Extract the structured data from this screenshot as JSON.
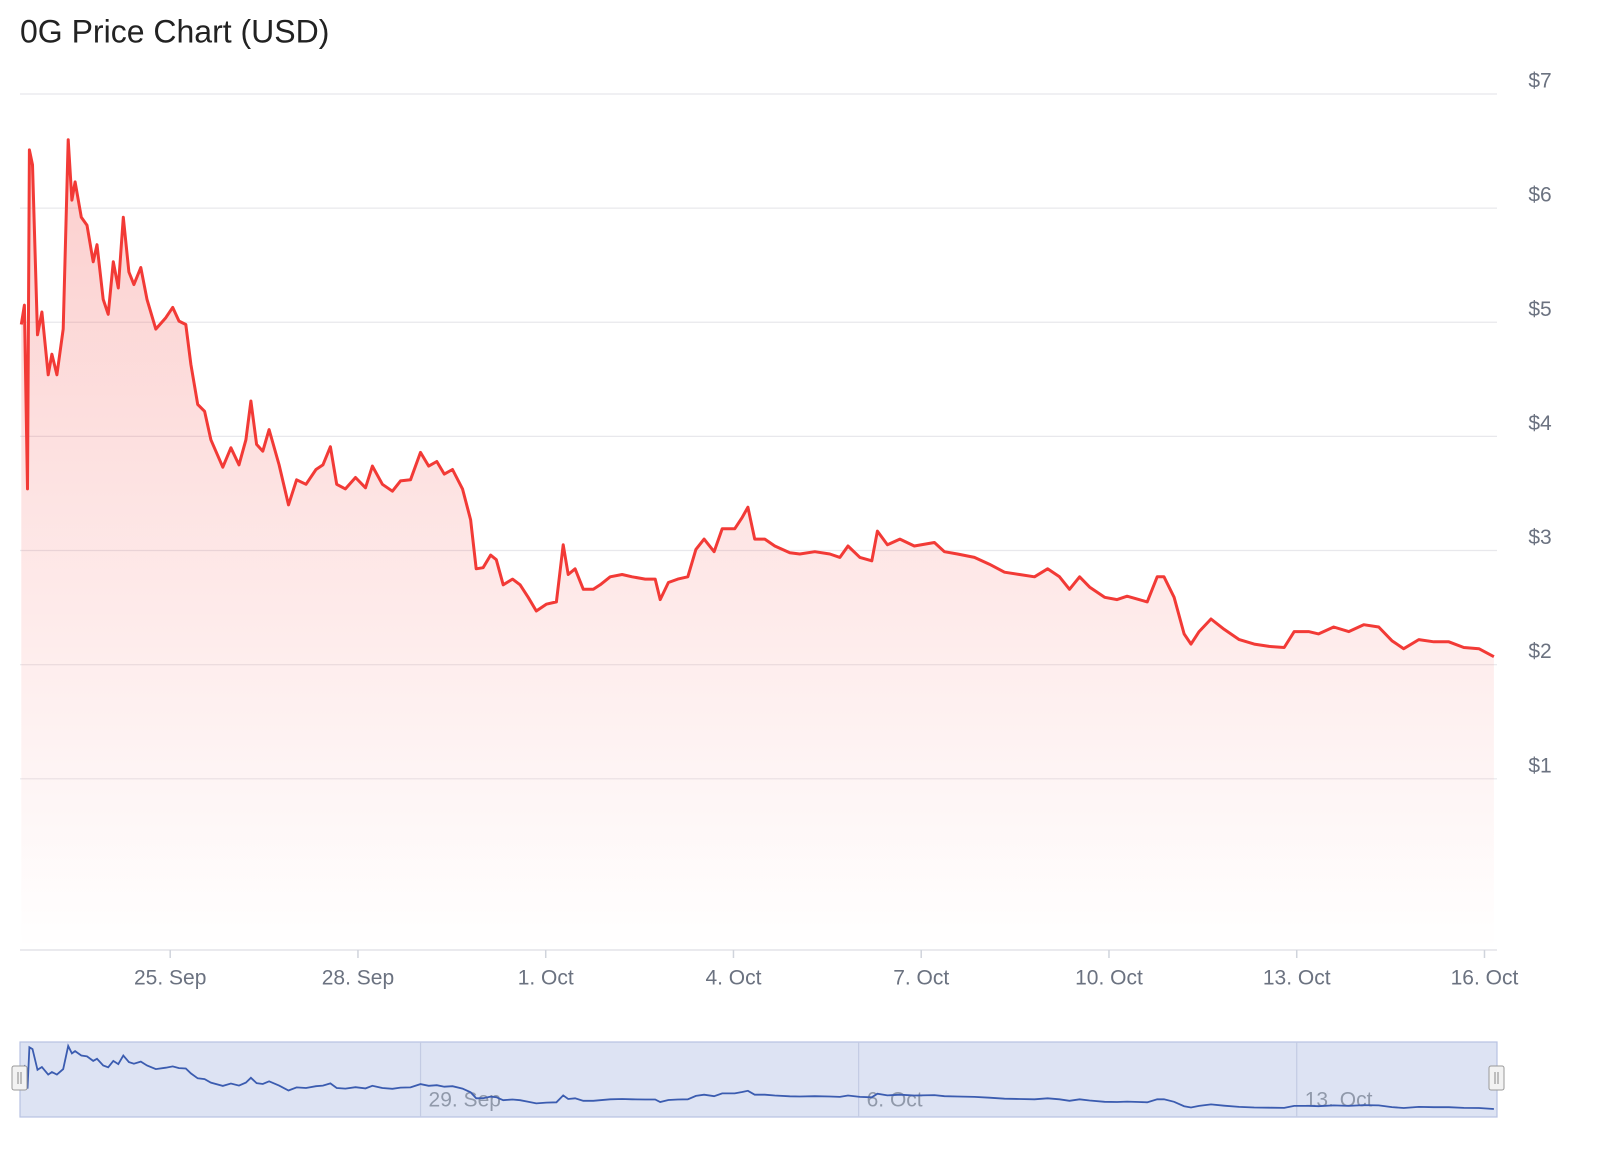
{
  "chart_data": {
    "type": "area",
    "title": "0G Price Chart (USD)",
    "color": "#f23a36",
    "navigator_color": "#3b5cb0",
    "grid": true,
    "xlim": [
      22.6,
      46.2
    ],
    "xticks": [
      {
        "value": 25,
        "label": "25. Sep"
      },
      {
        "value": 28,
        "label": "28. Sep"
      },
      {
        "value": 31,
        "label": "1. Oct"
      },
      {
        "value": 34,
        "label": "4. Oct"
      },
      {
        "value": 37,
        "label": "7. Oct"
      },
      {
        "value": 40,
        "label": "10. Oct"
      },
      {
        "value": 43,
        "label": "13. Oct"
      },
      {
        "value": 46,
        "label": "16. Oct"
      }
    ],
    "ylim": [
      -0.5,
      7
    ],
    "yticks": [
      {
        "value": 1,
        "label": "$1"
      },
      {
        "value": 2,
        "label": "$2"
      },
      {
        "value": 3,
        "label": "$3"
      },
      {
        "value": 4,
        "label": "$4"
      },
      {
        "value": 5,
        "label": "$5"
      },
      {
        "value": 6,
        "label": "$6"
      },
      {
        "value": 7,
        "label": "$7"
      }
    ],
    "navigator_xticks": [
      {
        "value": 29,
        "label": "29. Sep"
      },
      {
        "value": 36,
        "label": "6. Oct"
      },
      {
        "value": 43,
        "label": "13. Oct"
      }
    ],
    "x": [
      22.62,
      22.67,
      22.72,
      22.75,
      22.8,
      22.88,
      22.95,
      23.05,
      23.11,
      23.19,
      23.29,
      23.37,
      23.43,
      23.48,
      23.58,
      23.67,
      23.77,
      23.83,
      23.93,
      24.01,
      24.09,
      24.17,
      24.25,
      24.34,
      24.42,
      24.53,
      24.63,
      24.77,
      24.93,
      25.04,
      25.14,
      25.25,
      25.33,
      25.44,
      25.55,
      25.65,
      25.84,
      25.97,
      26.1,
      26.21,
      26.29,
      26.38,
      26.48,
      26.58,
      26.74,
      26.89,
      27.02,
      27.17,
      27.33,
      27.44,
      27.56,
      27.66,
      27.8,
      27.96,
      28.12,
      28.23,
      28.39,
      28.55,
      28.68,
      28.84,
      29.0,
      29.13,
      29.26,
      29.38,
      29.51,
      29.67,
      29.8,
      29.89,
      30.0,
      30.12,
      30.21,
      30.32,
      30.47,
      30.59,
      30.72,
      30.85,
      31.01,
      31.17,
      31.28,
      31.36,
      31.47,
      31.6,
      31.76,
      31.87,
      32.03,
      32.22,
      32.38,
      32.59,
      32.75,
      32.83,
      32.96,
      33.11,
      33.27,
      33.4,
      33.53,
      33.69,
      33.82,
      34.02,
      34.14,
      34.23,
      34.34,
      34.5,
      34.66,
      34.9,
      35.06,
      35.3,
      35.54,
      35.7,
      35.83,
      36.02,
      36.21,
      36.3,
      36.46,
      36.66,
      36.89,
      37.21,
      37.37,
      37.58,
      37.85,
      38.09,
      38.33,
      38.57,
      38.81,
      39.02,
      39.21,
      39.37,
      39.53,
      39.69,
      39.93,
      40.13,
      40.29,
      40.48,
      40.61,
      40.77,
      40.88,
      41.04,
      41.2,
      41.31,
      41.44,
      41.63,
      41.84,
      42.08,
      42.32,
      42.56,
      42.8,
      42.96,
      43.19,
      43.35,
      43.59,
      43.83,
      44.07,
      44.31,
      44.52,
      44.71,
      44.95,
      45.19,
      45.43,
      45.67,
      45.91,
      46.15
    ],
    "values": [
      4.98,
      5.15,
      3.54,
      6.51,
      6.38,
      4.89,
      5.09,
      4.54,
      4.72,
      4.54,
      4.94,
      6.6,
      6.07,
      6.23,
      5.92,
      5.85,
      5.53,
      5.68,
      5.2,
      5.07,
      5.53,
      5.3,
      5.92,
      5.44,
      5.33,
      5.48,
      5.2,
      4.94,
      5.04,
      5.13,
      5.01,
      4.98,
      4.63,
      4.28,
      4.22,
      3.97,
      3.73,
      3.9,
      3.75,
      3.97,
      4.31,
      3.93,
      3.87,
      4.06,
      3.75,
      3.4,
      3.62,
      3.58,
      3.71,
      3.75,
      3.91,
      3.58,
      3.54,
      3.64,
      3.55,
      3.74,
      3.58,
      3.52,
      3.61,
      3.62,
      3.86,
      3.74,
      3.78,
      3.67,
      3.71,
      3.54,
      3.27,
      2.84,
      2.85,
      2.96,
      2.92,
      2.7,
      2.75,
      2.7,
      2.59,
      2.47,
      2.53,
      2.55,
      3.05,
      2.79,
      2.84,
      2.66,
      2.66,
      2.7,
      2.77,
      2.79,
      2.77,
      2.75,
      2.75,
      2.57,
      2.72,
      2.75,
      2.77,
      3.01,
      3.1,
      2.99,
      3.19,
      3.19,
      3.29,
      3.38,
      3.1,
      3.1,
      3.04,
      2.98,
      2.97,
      2.99,
      2.97,
      2.94,
      3.04,
      2.94,
      2.91,
      3.17,
      3.05,
      3.1,
      3.04,
      3.07,
      2.99,
      2.97,
      2.94,
      2.88,
      2.81,
      2.79,
      2.77,
      2.84,
      2.77,
      2.66,
      2.77,
      2.68,
      2.59,
      2.57,
      2.6,
      2.57,
      2.55,
      2.77,
      2.77,
      2.59,
      2.27,
      2.18,
      2.29,
      2.4,
      2.31,
      2.22,
      2.18,
      2.16,
      2.15,
      2.29,
      2.29,
      2.27,
      2.33,
      2.29,
      2.35,
      2.33,
      2.21,
      2.14,
      2.22,
      2.2,
      2.2,
      2.15,
      2.14,
      2.07
    ]
  }
}
